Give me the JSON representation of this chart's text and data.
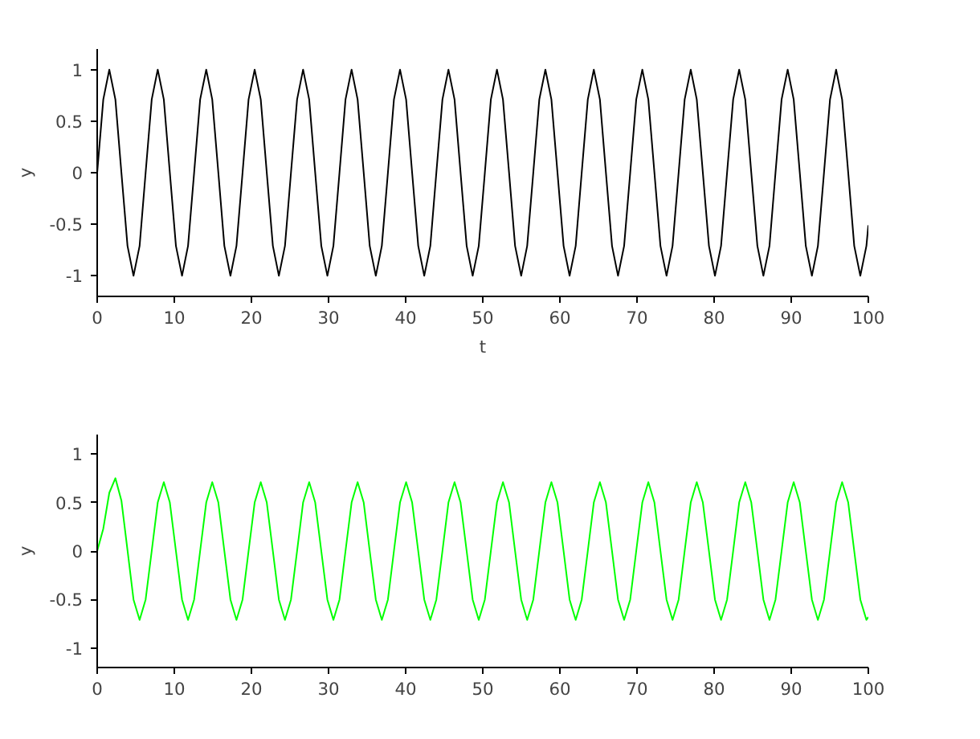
{
  "chart_data": [
    {
      "type": "line",
      "xlabel": "t",
      "ylabel": "y",
      "xlim": [
        0,
        100
      ],
      "ylim": [
        -1.2,
        1.2
      ],
      "xticks": [
        0,
        10,
        20,
        30,
        40,
        50,
        60,
        70,
        80,
        90,
        100
      ],
      "yticks": [
        -1,
        -0.5,
        0,
        0.5,
        1
      ],
      "x": [
        0,
        0.79,
        1.57,
        2.36,
        3.14,
        3.93,
        4.71,
        5.5,
        6.28,
        7.07,
        7.85,
        8.64,
        9.42,
        10.21,
        11.0,
        11.78,
        12.57,
        13.35,
        14.14,
        14.92,
        15.71,
        16.49,
        17.28,
        18.06,
        18.85,
        19.63,
        20.42,
        21.21,
        21.99,
        22.78,
        23.56,
        24.35,
        25.13,
        25.92,
        26.7,
        27.49,
        28.27,
        29.06,
        29.85,
        30.63,
        31.42,
        32.2,
        32.99,
        33.77,
        34.56,
        35.34,
        36.13,
        36.91,
        37.7,
        38.48,
        39.27,
        40.06,
        40.84,
        41.63,
        42.41,
        43.2,
        43.98,
        44.77,
        45.55,
        46.34,
        47.12,
        47.91,
        48.69,
        49.48,
        50.27,
        51.05,
        51.84,
        52.62,
        53.41,
        54.19,
        54.98,
        55.76,
        56.55,
        57.33,
        58.12,
        58.9,
        59.69,
        60.48,
        61.26,
        62.05,
        62.83,
        63.62,
        64.4,
        65.19,
        65.97,
        66.76,
        67.54,
        68.33,
        69.12,
        69.9,
        70.69,
        71.47,
        72.26,
        73.04,
        73.83,
        74.61,
        75.4,
        76.18,
        76.97,
        77.75,
        78.54,
        79.33,
        80.11,
        80.9,
        81.68,
        82.47,
        83.25,
        84.04,
        84.82,
        85.61,
        86.39,
        87.18,
        87.96,
        88.75,
        89.54,
        90.32,
        91.11,
        91.89,
        92.68,
        93.46,
        94.25,
        95.03,
        95.82,
        96.6,
        97.39,
        98.17,
        98.96,
        99.75,
        100
      ],
      "series": [
        {
          "color": "#000000",
          "values": [
            0,
            0.71,
            1,
            0.71,
            0,
            -0.71,
            -1,
            -0.71,
            0,
            0.71,
            1,
            0.71,
            0,
            -0.71,
            -1,
            -0.71,
            0,
            0.71,
            1,
            0.71,
            0,
            -0.71,
            -1,
            -0.71,
            0,
            0.71,
            1,
            0.71,
            0,
            -0.71,
            -1,
            -0.71,
            0,
            0.71,
            1,
            0.71,
            0,
            -0.71,
            -1,
            -0.71,
            0,
            0.71,
            1,
            0.71,
            0,
            -0.71,
            -1,
            -0.71,
            0,
            0.71,
            1,
            0.71,
            0,
            -0.71,
            -1,
            -0.71,
            0,
            0.71,
            1,
            0.71,
            0,
            -0.71,
            -1,
            -0.71,
            0,
            0.71,
            1,
            0.71,
            0,
            -0.71,
            -1,
            -0.71,
            0,
            0.71,
            1,
            0.71,
            0,
            -0.71,
            -1,
            -0.71,
            0,
            0.71,
            1,
            0.71,
            0,
            -0.71,
            -1,
            -0.71,
            0,
            0.71,
            1,
            0.71,
            0,
            -0.71,
            -1,
            -0.71,
            0,
            0.71,
            1,
            0.71,
            0,
            -0.71,
            -1,
            -0.71,
            0,
            0.71,
            1,
            0.71,
            0,
            -0.71,
            -1,
            -0.71,
            0,
            0.71,
            1,
            0.71,
            0,
            -0.71,
            -1,
            -0.71,
            0,
            0.71,
            1,
            0.71,
            0,
            -0.71,
            -1,
            -0.71,
            -0.51
          ]
        }
      ]
    },
    {
      "type": "line",
      "ylabel": "y",
      "xlim": [
        0,
        100
      ],
      "ylim": [
        -1.2,
        1.2
      ],
      "xticks": [
        0,
        10,
        20,
        30,
        40,
        50,
        60,
        70,
        80,
        90,
        100
      ],
      "yticks": [
        -1,
        -0.5,
        0,
        0.5,
        1
      ],
      "x": [
        0,
        0.79,
        1.57,
        2.36,
        3.14,
        3.93,
        4.71,
        5.5,
        6.28,
        7.07,
        7.85,
        8.64,
        9.42,
        10.21,
        11.0,
        11.78,
        12.57,
        13.35,
        14.14,
        14.92,
        15.71,
        16.49,
        17.28,
        18.06,
        18.85,
        19.63,
        20.42,
        21.21,
        21.99,
        22.78,
        23.56,
        24.35,
        25.13,
        25.92,
        26.7,
        27.49,
        28.27,
        29.06,
        29.85,
        30.63,
        31.42,
        32.2,
        32.99,
        33.77,
        34.56,
        35.34,
        36.13,
        36.91,
        37.7,
        38.48,
        39.27,
        40.06,
        40.84,
        41.63,
        42.41,
        43.2,
        43.98,
        44.77,
        45.55,
        46.34,
        47.12,
        47.91,
        48.69,
        49.48,
        50.27,
        51.05,
        51.84,
        52.62,
        53.41,
        54.19,
        54.98,
        55.76,
        56.55,
        57.33,
        58.12,
        58.9,
        59.69,
        60.48,
        61.26,
        62.05,
        62.83,
        63.62,
        64.4,
        65.19,
        65.97,
        66.76,
        67.54,
        68.33,
        69.12,
        69.9,
        70.69,
        71.47,
        72.26,
        73.04,
        73.83,
        74.61,
        75.4,
        76.18,
        76.97,
        77.75,
        78.54,
        79.33,
        80.11,
        80.9,
        81.68,
        82.47,
        83.25,
        84.04,
        84.82,
        85.61,
        86.39,
        87.18,
        87.96,
        88.75,
        89.54,
        90.32,
        91.11,
        91.89,
        92.68,
        93.46,
        94.25,
        95.03,
        95.82,
        96.6,
        97.39,
        98.17,
        98.96,
        99.75,
        100
      ],
      "series": [
        {
          "color": "#00ff00",
          "values": [
            0,
            0.23,
            0.6,
            0.75,
            0.52,
            0.01,
            -0.5,
            -0.71,
            -0.5,
            0,
            0.5,
            0.71,
            0.5,
            0,
            -0.5,
            -0.71,
            -0.5,
            0,
            0.5,
            0.71,
            0.5,
            0,
            -0.5,
            -0.71,
            -0.5,
            0,
            0.5,
            0.71,
            0.5,
            0,
            -0.5,
            -0.71,
            -0.5,
            0,
            0.5,
            0.71,
            0.5,
            0,
            -0.5,
            -0.71,
            -0.5,
            0,
            0.5,
            0.71,
            0.5,
            0,
            -0.5,
            -0.71,
            -0.5,
            0,
            0.5,
            0.71,
            0.5,
            0,
            -0.5,
            -0.71,
            -0.5,
            0,
            0.5,
            0.71,
            0.5,
            0,
            -0.5,
            -0.71,
            -0.5,
            0,
            0.5,
            0.71,
            0.5,
            0,
            -0.5,
            -0.71,
            -0.5,
            0,
            0.5,
            0.71,
            0.5,
            0,
            -0.5,
            -0.71,
            -0.5,
            0,
            0.5,
            0.71,
            0.5,
            0,
            -0.5,
            -0.71,
            -0.5,
            0,
            0.5,
            0.71,
            0.5,
            0,
            -0.5,
            -0.71,
            -0.5,
            0,
            0.5,
            0.71,
            0.5,
            0,
            -0.5,
            -0.71,
            -0.5,
            0,
            0.5,
            0.71,
            0.5,
            0,
            -0.5,
            -0.71,
            -0.5,
            0,
            0.5,
            0.71,
            0.5,
            0,
            -0.5,
            -0.71,
            -0.5,
            0,
            0.5,
            0.71,
            0.5,
            0,
            -0.5,
            -0.71,
            -0.68
          ]
        }
      ]
    }
  ]
}
